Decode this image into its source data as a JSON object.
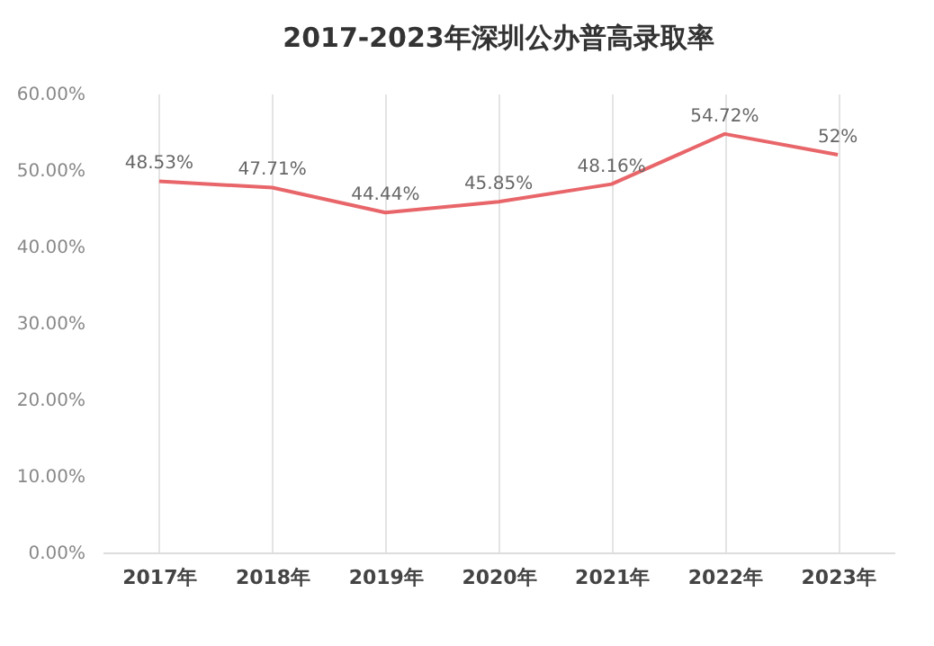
{
  "chart_data": {
    "type": "line",
    "title": "2017-2023年深圳公办普高录取率",
    "categories": [
      "2017年",
      "2018年",
      "2019年",
      "2020年",
      "2021年",
      "2022年",
      "2023年"
    ],
    "series": [
      {
        "color": "#e8666a",
        "values": [
          48.53,
          47.71,
          44.44,
          45.85,
          48.16,
          54.72,
          52
        ],
        "value_labels": [
          "48.53%",
          "47.71%",
          "44.44%",
          "45.85%",
          "48.16%",
          "54.72%",
          "52%"
        ]
      }
    ],
    "ylim": [
      0,
      60
    ],
    "yticks": [
      {
        "value": 0,
        "label": "0.00%"
      },
      {
        "value": 10,
        "label": "10.00%"
      },
      {
        "value": 20,
        "label": "20.00%"
      },
      {
        "value": 30,
        "label": "30.00%"
      },
      {
        "value": 40,
        "label": "40.00%"
      },
      {
        "value": 50,
        "label": "50.00%"
      },
      {
        "value": 60,
        "label": "60.00%"
      }
    ],
    "grid": "x",
    "marker": "none",
    "line_style": "solid"
  }
}
